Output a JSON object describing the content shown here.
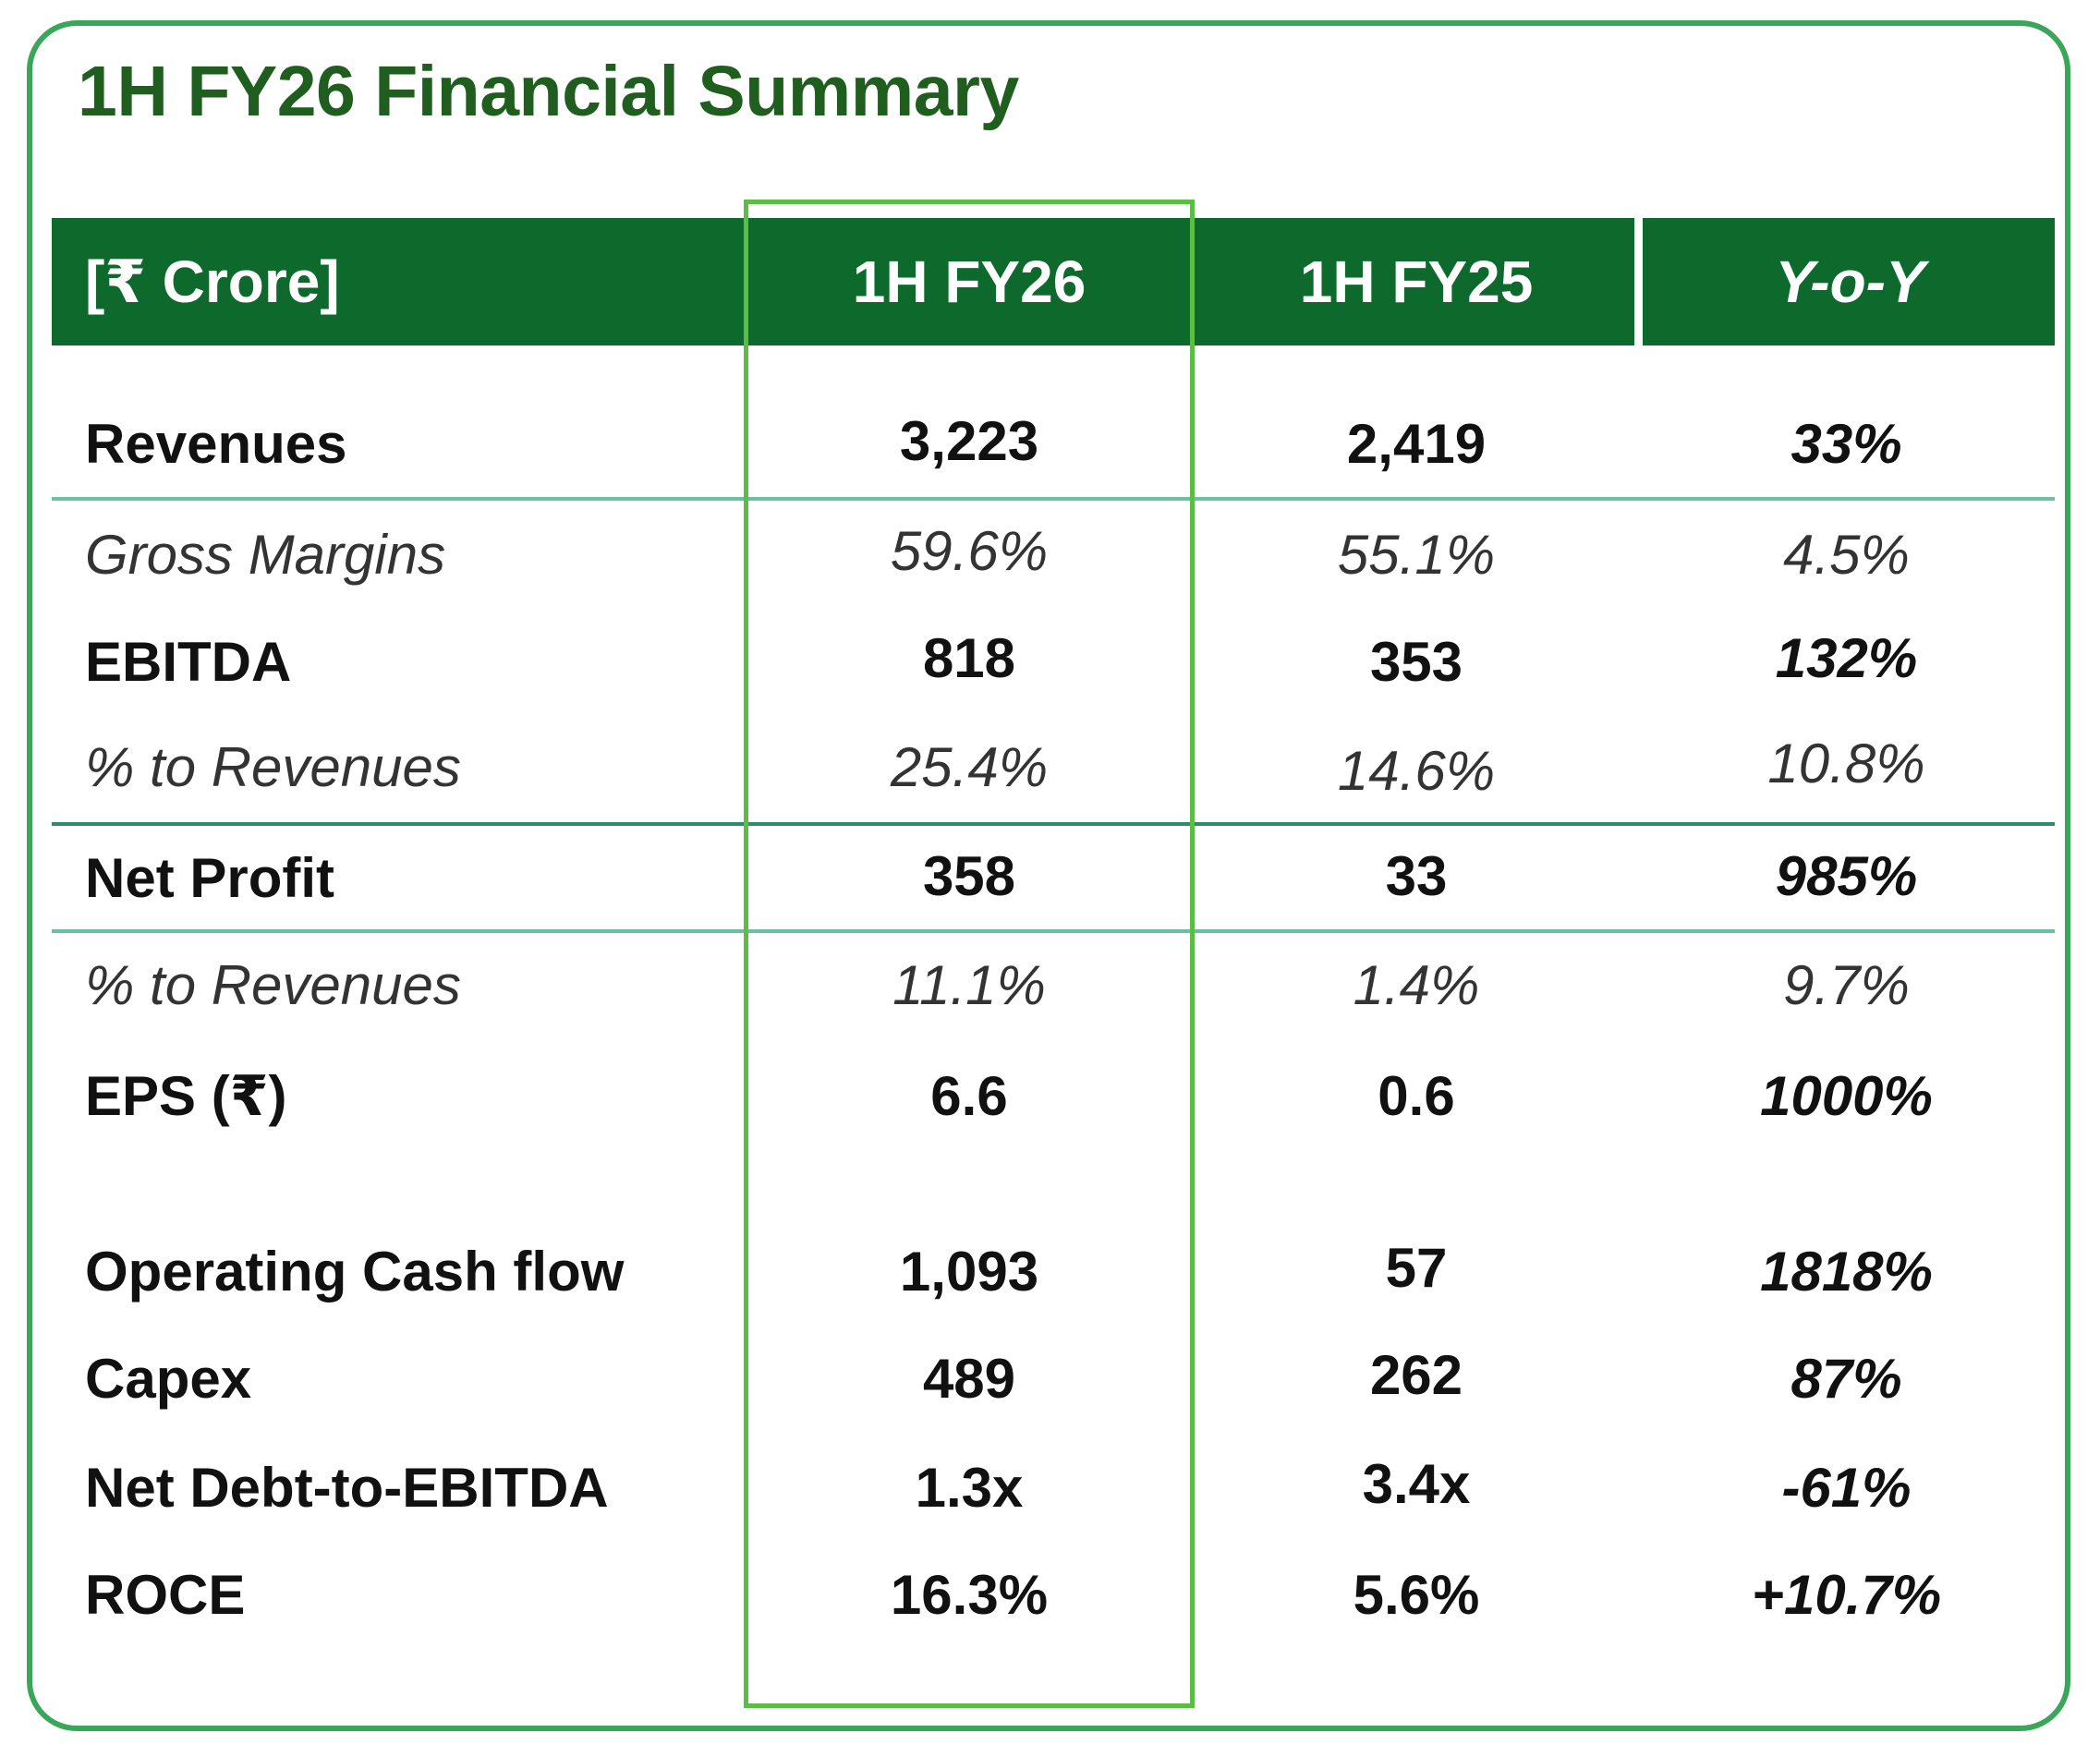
{
  "title": "1H FY26  Financial Summary",
  "header": {
    "unit": "[₹ Crore]",
    "col1": "1H FY26",
    "col2": "1H FY25",
    "col3": "Y-o-Y"
  },
  "rows": [
    {
      "label": "Revenues",
      "fy26": "3,223",
      "fy25": "2,419",
      "yoy": "33%"
    },
    {
      "label": "Gross Margins",
      "fy26": "59.6%",
      "fy25": "55.1%",
      "yoy": "4.5%"
    },
    {
      "label": "EBITDA",
      "fy26": "818",
      "fy25": "353",
      "yoy": "132%"
    },
    {
      "label": "% to Revenues",
      "fy26": "25.4%",
      "fy25": "14.6%",
      "yoy": "10.8%"
    },
    {
      "label": "Net Profit",
      "fy26": "358",
      "fy25": "33",
      "yoy": "985%"
    },
    {
      "label": "% to Revenues",
      "fy26": "11.1%",
      "fy25": "1.4%",
      "yoy": "9.7%"
    },
    {
      "label": "EPS (₹)",
      "fy26": "6.6",
      "fy25": "0.6",
      "yoy": "1000%"
    },
    {
      "label": "Operating Cash flow",
      "fy26": "1,093",
      "fy25": "57",
      "yoy": "1818%"
    },
    {
      "label": "Capex",
      "fy26": "489",
      "fy25": "262",
      "yoy": "87%"
    },
    {
      "label": "Net Debt-to-EBITDA",
      "fy26": "1.3x",
      "fy25": "3.4x",
      "yoy": "-61%"
    },
    {
      "label": "ROCE",
      "fy26": "16.3%",
      "fy25": "5.6%",
      "yoy": "+10.7%"
    }
  ],
  "colors": {
    "header_bg": "#0d6a2c",
    "title": "#1f5e1f",
    "card_border": "#3aa65a",
    "highlight_border": "#5cbd45",
    "rule": "#6bbfa5"
  }
}
